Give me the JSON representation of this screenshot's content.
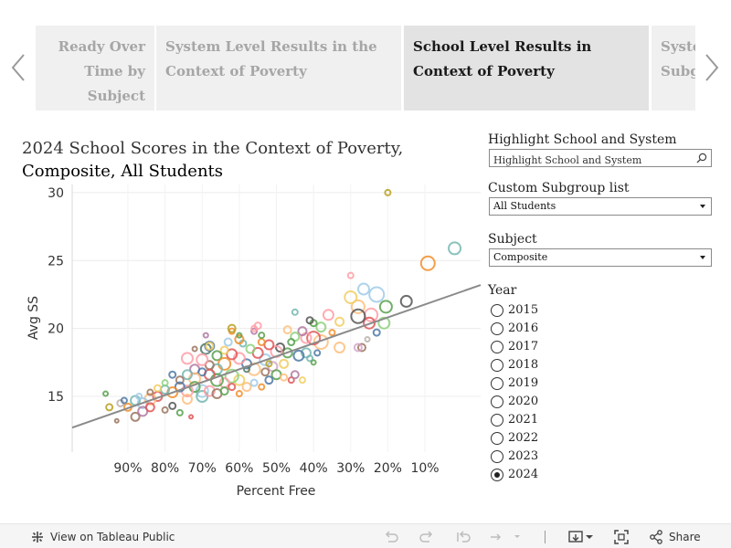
{
  "story_tabs": [
    {
      "label": "Ready Over Time by Subject"
    },
    {
      "label": "System Level Results in the Context of Poverty"
    },
    {
      "label": "School Level Results in Context of Poverty"
    },
    {
      "label": "System Subgroup"
    }
  ],
  "active_tab": 2,
  "title": {
    "prefix": "2024 School Scores in the Context of Poverty, ",
    "subject": "Composite",
    "separator": ",",
    "group": "All Students"
  },
  "controls": {
    "highlight": {
      "label": "Highlight School and System",
      "placeholder": "Highlight School and System"
    },
    "subgroup": {
      "label": "Custom Subgroup list",
      "value": "All Students"
    },
    "subject": {
      "label": "Subject",
      "value": "Composite"
    },
    "year": {
      "label": "Year",
      "options": [
        "2015",
        "2016",
        "2017",
        "2018",
        "2019",
        "2020",
        "2021",
        "2022",
        "2023",
        "2024"
      ],
      "selected": "2024"
    }
  },
  "toolbar": {
    "view_label": "View on Tableau Public",
    "share_label": "Share"
  },
  "chart_data": {
    "type": "scatter",
    "xlabel": "Percent Free",
    "ylabel": "Avg SS",
    "xlim": [
      1.05,
      -0.05
    ],
    "ylim": [
      10.9,
      30.6
    ],
    "x_ticks": [
      0.9,
      0.8,
      0.7,
      0.6,
      0.5,
      0.4,
      0.3,
      0.2,
      0.1
    ],
    "x_tick_labels": [
      "90%",
      "80%",
      "70%",
      "60%",
      "50%",
      "40%",
      "30%",
      "20%",
      "10%"
    ],
    "y_ticks": [
      15,
      20,
      25,
      30
    ],
    "grid": true,
    "trend_line": {
      "from": [
        1.05,
        12.7
      ],
      "to": [
        -0.05,
        23.2
      ]
    },
    "palette": [
      "#4e79a7",
      "#f28e2b",
      "#e15759",
      "#76b7b2",
      "#59a14f",
      "#edc948",
      "#b07aa1",
      "#ff9da7",
      "#9c755f",
      "#bab0ac"
    ],
    "points": [
      {
        "x": 0.02,
        "y": 25.9,
        "r": 6.5,
        "c": "#76b7b2"
      },
      {
        "x": 0.092,
        "y": 24.8,
        "r": 7.5,
        "c": "#f28e2b"
      },
      {
        "x": 0.2,
        "y": 30.0,
        "r": 3.0,
        "c": "#b8a020"
      },
      {
        "x": 0.15,
        "y": 22.0,
        "r": 6.0,
        "c": "#555555"
      },
      {
        "x": 0.205,
        "y": 21.6,
        "r": 6.5,
        "c": "#59a14f"
      },
      {
        "x": 0.23,
        "y": 22.5,
        "r": 8.0,
        "c": "#a0cbe8"
      },
      {
        "x": 0.245,
        "y": 21.0,
        "r": 7.0,
        "c": "#ff9da7"
      },
      {
        "x": 0.265,
        "y": 22.9,
        "r": 6.0,
        "c": "#a0cbe8"
      },
      {
        "x": 0.28,
        "y": 21.6,
        "r": 7.0,
        "c": "#ffbe7d"
      },
      {
        "x": 0.3,
        "y": 22.3,
        "r": 6.5,
        "c": "#f1ce63"
      },
      {
        "x": 0.21,
        "y": 20.4,
        "r": 6.0,
        "c": "#8cd17d"
      },
      {
        "x": 0.25,
        "y": 20.4,
        "r": 6.0,
        "c": "#e15759"
      },
      {
        "x": 0.28,
        "y": 20.9,
        "r": 7.5,
        "c": "#555555"
      },
      {
        "x": 0.3,
        "y": 23.9,
        "r": 3.0,
        "c": "#ff9da7"
      },
      {
        "x": 0.23,
        "y": 19.7,
        "r": 3.5,
        "c": "#4e79a7"
      },
      {
        "x": 0.255,
        "y": 19.2,
        "r": 2.5,
        "c": "#bab0ac"
      },
      {
        "x": 0.27,
        "y": 18.6,
        "r": 4.0,
        "c": "#9c755f"
      },
      {
        "x": 0.28,
        "y": 18.6,
        "r": 4.0,
        "c": "#d4a6c8"
      },
      {
        "x": 0.33,
        "y": 18.6,
        "r": 5.5,
        "c": "#ffbe7d"
      },
      {
        "x": 0.35,
        "y": 19.7,
        "r": 3.0,
        "c": "#f28e2b"
      },
      {
        "x": 0.33,
        "y": 20.5,
        "r": 4.5,
        "c": "#f1ce63"
      },
      {
        "x": 0.36,
        "y": 21.0,
        "r": 5.5,
        "c": "#ff9da7"
      },
      {
        "x": 0.38,
        "y": 20.1,
        "r": 5.0,
        "c": "#8cd17d"
      },
      {
        "x": 0.4,
        "y": 20.4,
        "r": 3.5,
        "c": "#59a14f"
      },
      {
        "x": 0.41,
        "y": 20.6,
        "r": 3.5,
        "c": "#555555"
      },
      {
        "x": 0.38,
        "y": 19.0,
        "r": 7.5,
        "c": "#ffbe7d"
      },
      {
        "x": 0.4,
        "y": 19.3,
        "r": 7.0,
        "c": "#e15759"
      },
      {
        "x": 0.42,
        "y": 19.3,
        "r": 5.5,
        "c": "#ff9da7"
      },
      {
        "x": 0.43,
        "y": 19.8,
        "r": 4.5,
        "c": "#b07aa1"
      },
      {
        "x": 0.39,
        "y": 18.2,
        "r": 3.0,
        "c": "#4e79a7"
      },
      {
        "x": 0.42,
        "y": 18.2,
        "r": 5.0,
        "c": "#76b7b2"
      },
      {
        "x": 0.45,
        "y": 19.4,
        "r": 4.5,
        "c": "#8cd17d"
      },
      {
        "x": 0.46,
        "y": 19.0,
        "r": 3.5,
        "c": "#59a14f"
      },
      {
        "x": 0.47,
        "y": 19.9,
        "r": 4.0,
        "c": "#ffbe7d"
      },
      {
        "x": 0.45,
        "y": 21.2,
        "r": 3.0,
        "c": "#76b7b2"
      },
      {
        "x": 0.44,
        "y": 18.0,
        "r": 5.5,
        "c": "#4e79a7"
      },
      {
        "x": 0.47,
        "y": 18.2,
        "r": 5.0,
        "c": "#59a14f"
      },
      {
        "x": 0.49,
        "y": 18.6,
        "r": 4.5,
        "c": "#555555"
      },
      {
        "x": 0.5,
        "y": 18.3,
        "r": 6.0,
        "c": "#ff9da7"
      },
      {
        "x": 0.52,
        "y": 18.8,
        "r": 5.0,
        "c": "#e15759"
      },
      {
        "x": 0.54,
        "y": 19.0,
        "r": 3.5,
        "c": "#f28e2b"
      },
      {
        "x": 0.48,
        "y": 17.4,
        "r": 4.5,
        "c": "#f1ce63"
      },
      {
        "x": 0.51,
        "y": 17.2,
        "r": 5.0,
        "c": "#d4a6c8"
      },
      {
        "x": 0.53,
        "y": 17.7,
        "r": 6.0,
        "c": "#a0cbe8"
      },
      {
        "x": 0.55,
        "y": 18.2,
        "r": 5.5,
        "c": "#e15759"
      },
      {
        "x": 0.57,
        "y": 18.5,
        "r": 4.5,
        "c": "#8cd17d"
      },
      {
        "x": 0.59,
        "y": 18.9,
        "r": 3.5,
        "c": "#76b7b2"
      },
      {
        "x": 0.6,
        "y": 19.2,
        "r": 4.5,
        "c": "#f28e2b"
      },
      {
        "x": 0.56,
        "y": 19.8,
        "r": 3.0,
        "c": "#b07aa1"
      },
      {
        "x": 0.55,
        "y": 20.2,
        "r": 3.5,
        "c": "#ff9da7"
      },
      {
        "x": 0.54,
        "y": 19.5,
        "r": 3.0,
        "c": "#59a14f"
      },
      {
        "x": 0.5,
        "y": 16.6,
        "r": 5.0,
        "c": "#59a14f"
      },
      {
        "x": 0.53,
        "y": 16.8,
        "r": 4.0,
        "c": "#9c755f"
      },
      {
        "x": 0.56,
        "y": 17.0,
        "r": 6.5,
        "c": "#ffbe7d"
      },
      {
        "x": 0.58,
        "y": 17.4,
        "r": 5.0,
        "c": "#4e79a7"
      },
      {
        "x": 0.6,
        "y": 17.8,
        "r": 6.0,
        "c": "#ff9da7"
      },
      {
        "x": 0.62,
        "y": 18.1,
        "r": 5.5,
        "c": "#e15759"
      },
      {
        "x": 0.64,
        "y": 18.4,
        "r": 4.0,
        "c": "#f1ce63"
      },
      {
        "x": 0.66,
        "y": 18.0,
        "r": 5.0,
        "c": "#59a14f"
      },
      {
        "x": 0.63,
        "y": 19.0,
        "r": 4.0,
        "c": "#a0cbe8"
      },
      {
        "x": 0.68,
        "y": 18.7,
        "r": 5.0,
        "c": "#4e79a7"
      },
      {
        "x": 0.62,
        "y": 19.8,
        "r": 3.0,
        "c": "#f28e2b"
      },
      {
        "x": 0.69,
        "y": 18.5,
        "r": 5.5,
        "c": "#4e7a6a"
      },
      {
        "x": 0.64,
        "y": 17.4,
        "r": 6.5,
        "c": "#f28e2b"
      },
      {
        "x": 0.66,
        "y": 17.0,
        "r": 5.5,
        "c": "#76b7b2"
      },
      {
        "x": 0.68,
        "y": 17.3,
        "r": 4.5,
        "c": "#9c755f"
      },
      {
        "x": 0.7,
        "y": 17.7,
        "r": 6.0,
        "c": "#ff9da7"
      },
      {
        "x": 0.72,
        "y": 17.0,
        "r": 5.0,
        "c": "#b07aa1"
      },
      {
        "x": 0.74,
        "y": 17.8,
        "r": 6.0,
        "c": "#ff9da7"
      },
      {
        "x": 0.6,
        "y": 16.2,
        "r": 5.5,
        "c": "#f1ce63"
      },
      {
        "x": 0.62,
        "y": 16.5,
        "r": 7.0,
        "c": "#8cd17d"
      },
      {
        "x": 0.64,
        "y": 16.0,
        "r": 5.0,
        "c": "#ff9da7"
      },
      {
        "x": 0.66,
        "y": 16.2,
        "r": 6.5,
        "c": "#59a14f"
      },
      {
        "x": 0.68,
        "y": 16.6,
        "r": 5.5,
        "c": "#e15759"
      },
      {
        "x": 0.7,
        "y": 16.8,
        "r": 4.0,
        "c": "#4e79a7"
      },
      {
        "x": 0.72,
        "y": 16.3,
        "r": 6.0,
        "c": "#ffbe7d"
      },
      {
        "x": 0.74,
        "y": 16.6,
        "r": 5.0,
        "c": "#76b7b2"
      },
      {
        "x": 0.76,
        "y": 16.2,
        "r": 4.0,
        "c": "#9c755f"
      },
      {
        "x": 0.7,
        "y": 15.4,
        "r": 6.5,
        "c": "#a0cbe8"
      },
      {
        "x": 0.72,
        "y": 15.7,
        "r": 5.5,
        "c": "#59a14f"
      },
      {
        "x": 0.74,
        "y": 15.4,
        "r": 6.0,
        "c": "#ff9da7"
      },
      {
        "x": 0.76,
        "y": 15.7,
        "r": 5.0,
        "c": "#4e79a7"
      },
      {
        "x": 0.78,
        "y": 15.3,
        "r": 5.5,
        "c": "#f28e2b"
      },
      {
        "x": 0.8,
        "y": 15.5,
        "r": 4.5,
        "c": "#76b7b2"
      },
      {
        "x": 0.82,
        "y": 15.0,
        "r": 5.0,
        "c": "#e15759"
      },
      {
        "x": 0.84,
        "y": 14.8,
        "r": 6.0,
        "c": "#ffbe7d"
      },
      {
        "x": 0.86,
        "y": 14.5,
        "r": 5.5,
        "c": "#a0cbe8"
      },
      {
        "x": 0.88,
        "y": 14.7,
        "r": 5.0,
        "c": "#76b7b2"
      },
      {
        "x": 0.9,
        "y": 14.2,
        "r": 4.0,
        "c": "#f28e2b"
      },
      {
        "x": 0.92,
        "y": 14.5,
        "r": 3.5,
        "c": "#bab0ac"
      },
      {
        "x": 0.95,
        "y": 14.2,
        "r": 3.5,
        "c": "#b8a020"
      },
      {
        "x": 0.96,
        "y": 15.2,
        "r": 2.5,
        "c": "#59a14f"
      },
      {
        "x": 0.93,
        "y": 13.2,
        "r": 2.0,
        "c": "#9c755f"
      },
      {
        "x": 0.88,
        "y": 13.5,
        "r": 4.5,
        "c": "#9c755f"
      },
      {
        "x": 0.86,
        "y": 13.9,
        "r": 5.0,
        "c": "#b07aa1"
      },
      {
        "x": 0.84,
        "y": 14.2,
        "r": 4.5,
        "c": "#e15759"
      },
      {
        "x": 0.8,
        "y": 14.0,
        "r": 3.0,
        "c": "#9c755f"
      },
      {
        "x": 0.76,
        "y": 13.8,
        "r": 3.0,
        "c": "#59a14f"
      },
      {
        "x": 0.73,
        "y": 13.5,
        "r": 2.0,
        "c": "#e15759"
      },
      {
        "x": 0.78,
        "y": 14.3,
        "r": 3.5,
        "c": "#555555"
      },
      {
        "x": 0.74,
        "y": 14.8,
        "r": 5.0,
        "c": "#ffbe7d"
      },
      {
        "x": 0.7,
        "y": 15.0,
        "r": 6.0,
        "c": "#76b7b2"
      },
      {
        "x": 0.68,
        "y": 15.4,
        "r": 5.5,
        "c": "#ff9da7"
      },
      {
        "x": 0.66,
        "y": 15.2,
        "r": 5.0,
        "c": "#9c755f"
      },
      {
        "x": 0.64,
        "y": 15.4,
        "r": 4.0,
        "c": "#59a14f"
      },
      {
        "x": 0.62,
        "y": 15.7,
        "r": 3.5,
        "c": "#e15759"
      },
      {
        "x": 0.6,
        "y": 15.2,
        "r": 3.0,
        "c": "#f28e2b"
      },
      {
        "x": 0.58,
        "y": 15.7,
        "r": 4.5,
        "c": "#ffbe7d"
      },
      {
        "x": 0.56,
        "y": 16.0,
        "r": 3.5,
        "c": "#a0cbe8"
      },
      {
        "x": 0.54,
        "y": 15.7,
        "r": 3.0,
        "c": "#f28e2b"
      },
      {
        "x": 0.52,
        "y": 16.2,
        "r": 4.0,
        "c": "#4e79a7"
      },
      {
        "x": 0.48,
        "y": 16.4,
        "r": 3.5,
        "c": "#ffbe7d"
      },
      {
        "x": 0.46,
        "y": 16.2,
        "r": 3.0,
        "c": "#e15759"
      },
      {
        "x": 0.45,
        "y": 16.6,
        "r": 4.0,
        "c": "#b07aa1"
      },
      {
        "x": 0.43,
        "y": 16.2,
        "r": 3.0,
        "c": "#f1ce63"
      },
      {
        "x": 0.41,
        "y": 17.8,
        "r": 3.0,
        "c": "#76b7b2"
      },
      {
        "x": 0.4,
        "y": 17.5,
        "r": 2.5,
        "c": "#59a14f"
      },
      {
        "x": 0.68,
        "y": 18.7,
        "r": 4.0,
        "c": "#f1ce63"
      },
      {
        "x": 0.72,
        "y": 18.5,
        "r": 2.5,
        "c": "#9c755f"
      },
      {
        "x": 0.69,
        "y": 19.5,
        "r": 2.5,
        "c": "#b07aa1"
      },
      {
        "x": 0.62,
        "y": 20.0,
        "r": 4.0,
        "c": "#b8a020"
      },
      {
        "x": 0.6,
        "y": 19.5,
        "r": 2.5,
        "c": "#59a14f"
      },
      {
        "x": 0.56,
        "y": 20.0,
        "r": 3.0,
        "c": "#ff9da7"
      },
      {
        "x": 0.78,
        "y": 16.6,
        "r": 3.5,
        "c": "#4e79a7"
      },
      {
        "x": 0.8,
        "y": 16.0,
        "r": 3.0,
        "c": "#8cd17d"
      },
      {
        "x": 0.82,
        "y": 15.6,
        "r": 3.5,
        "c": "#f1ce63"
      },
      {
        "x": 0.84,
        "y": 15.3,
        "r": 3.0,
        "c": "#9c755f"
      },
      {
        "x": 0.91,
        "y": 14.7,
        "r": 3.0,
        "c": "#4e79a7"
      },
      {
        "x": 0.87,
        "y": 15.0,
        "r": 3.0,
        "c": "#a0cbe8"
      },
      {
        "x": 0.58,
        "y": 17.0,
        "r": 3.0,
        "c": "#4e7a6a"
      },
      {
        "x": 0.52,
        "y": 17.4,
        "r": 3.0,
        "c": "#b8a020"
      }
    ]
  }
}
